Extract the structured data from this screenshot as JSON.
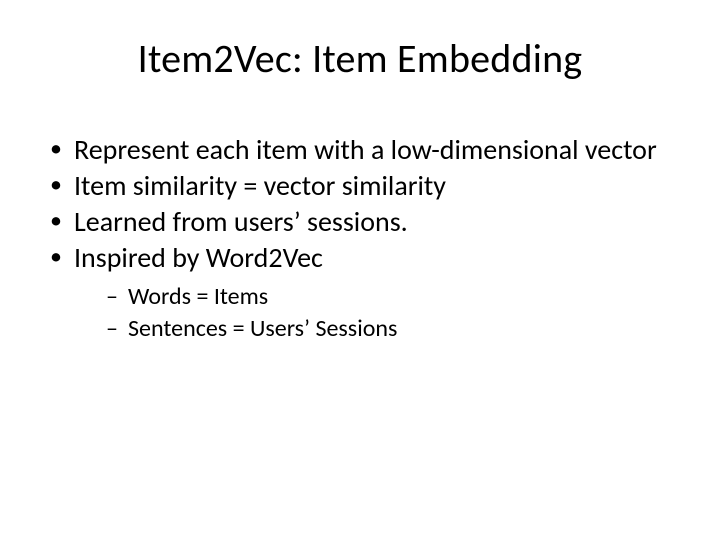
{
  "slide": {
    "background_color": "#ffffff",
    "text_color": "#000000",
    "title": {
      "text": "Item2Vec: Item Embedding",
      "font_size_pt": 40,
      "font_weight": "normal",
      "align": "center"
    },
    "bullets": {
      "level1_font_size_pt": 28,
      "level2_font_size_pt": 24,
      "bullet_marker_level1": "•",
      "bullet_marker_level2": "–",
      "items": [
        {
          "text": "Represent each item with a low-dimensional vector"
        },
        {
          "text": "Item similarity = vector similarity"
        },
        {
          "text": "Learned from users’ sessions."
        },
        {
          "text": "Inspired by Word2Vec",
          "children": [
            {
              "text": "Words = Items"
            },
            {
              "text": "Sentences = Users’ Sessions"
            }
          ]
        }
      ]
    }
  }
}
